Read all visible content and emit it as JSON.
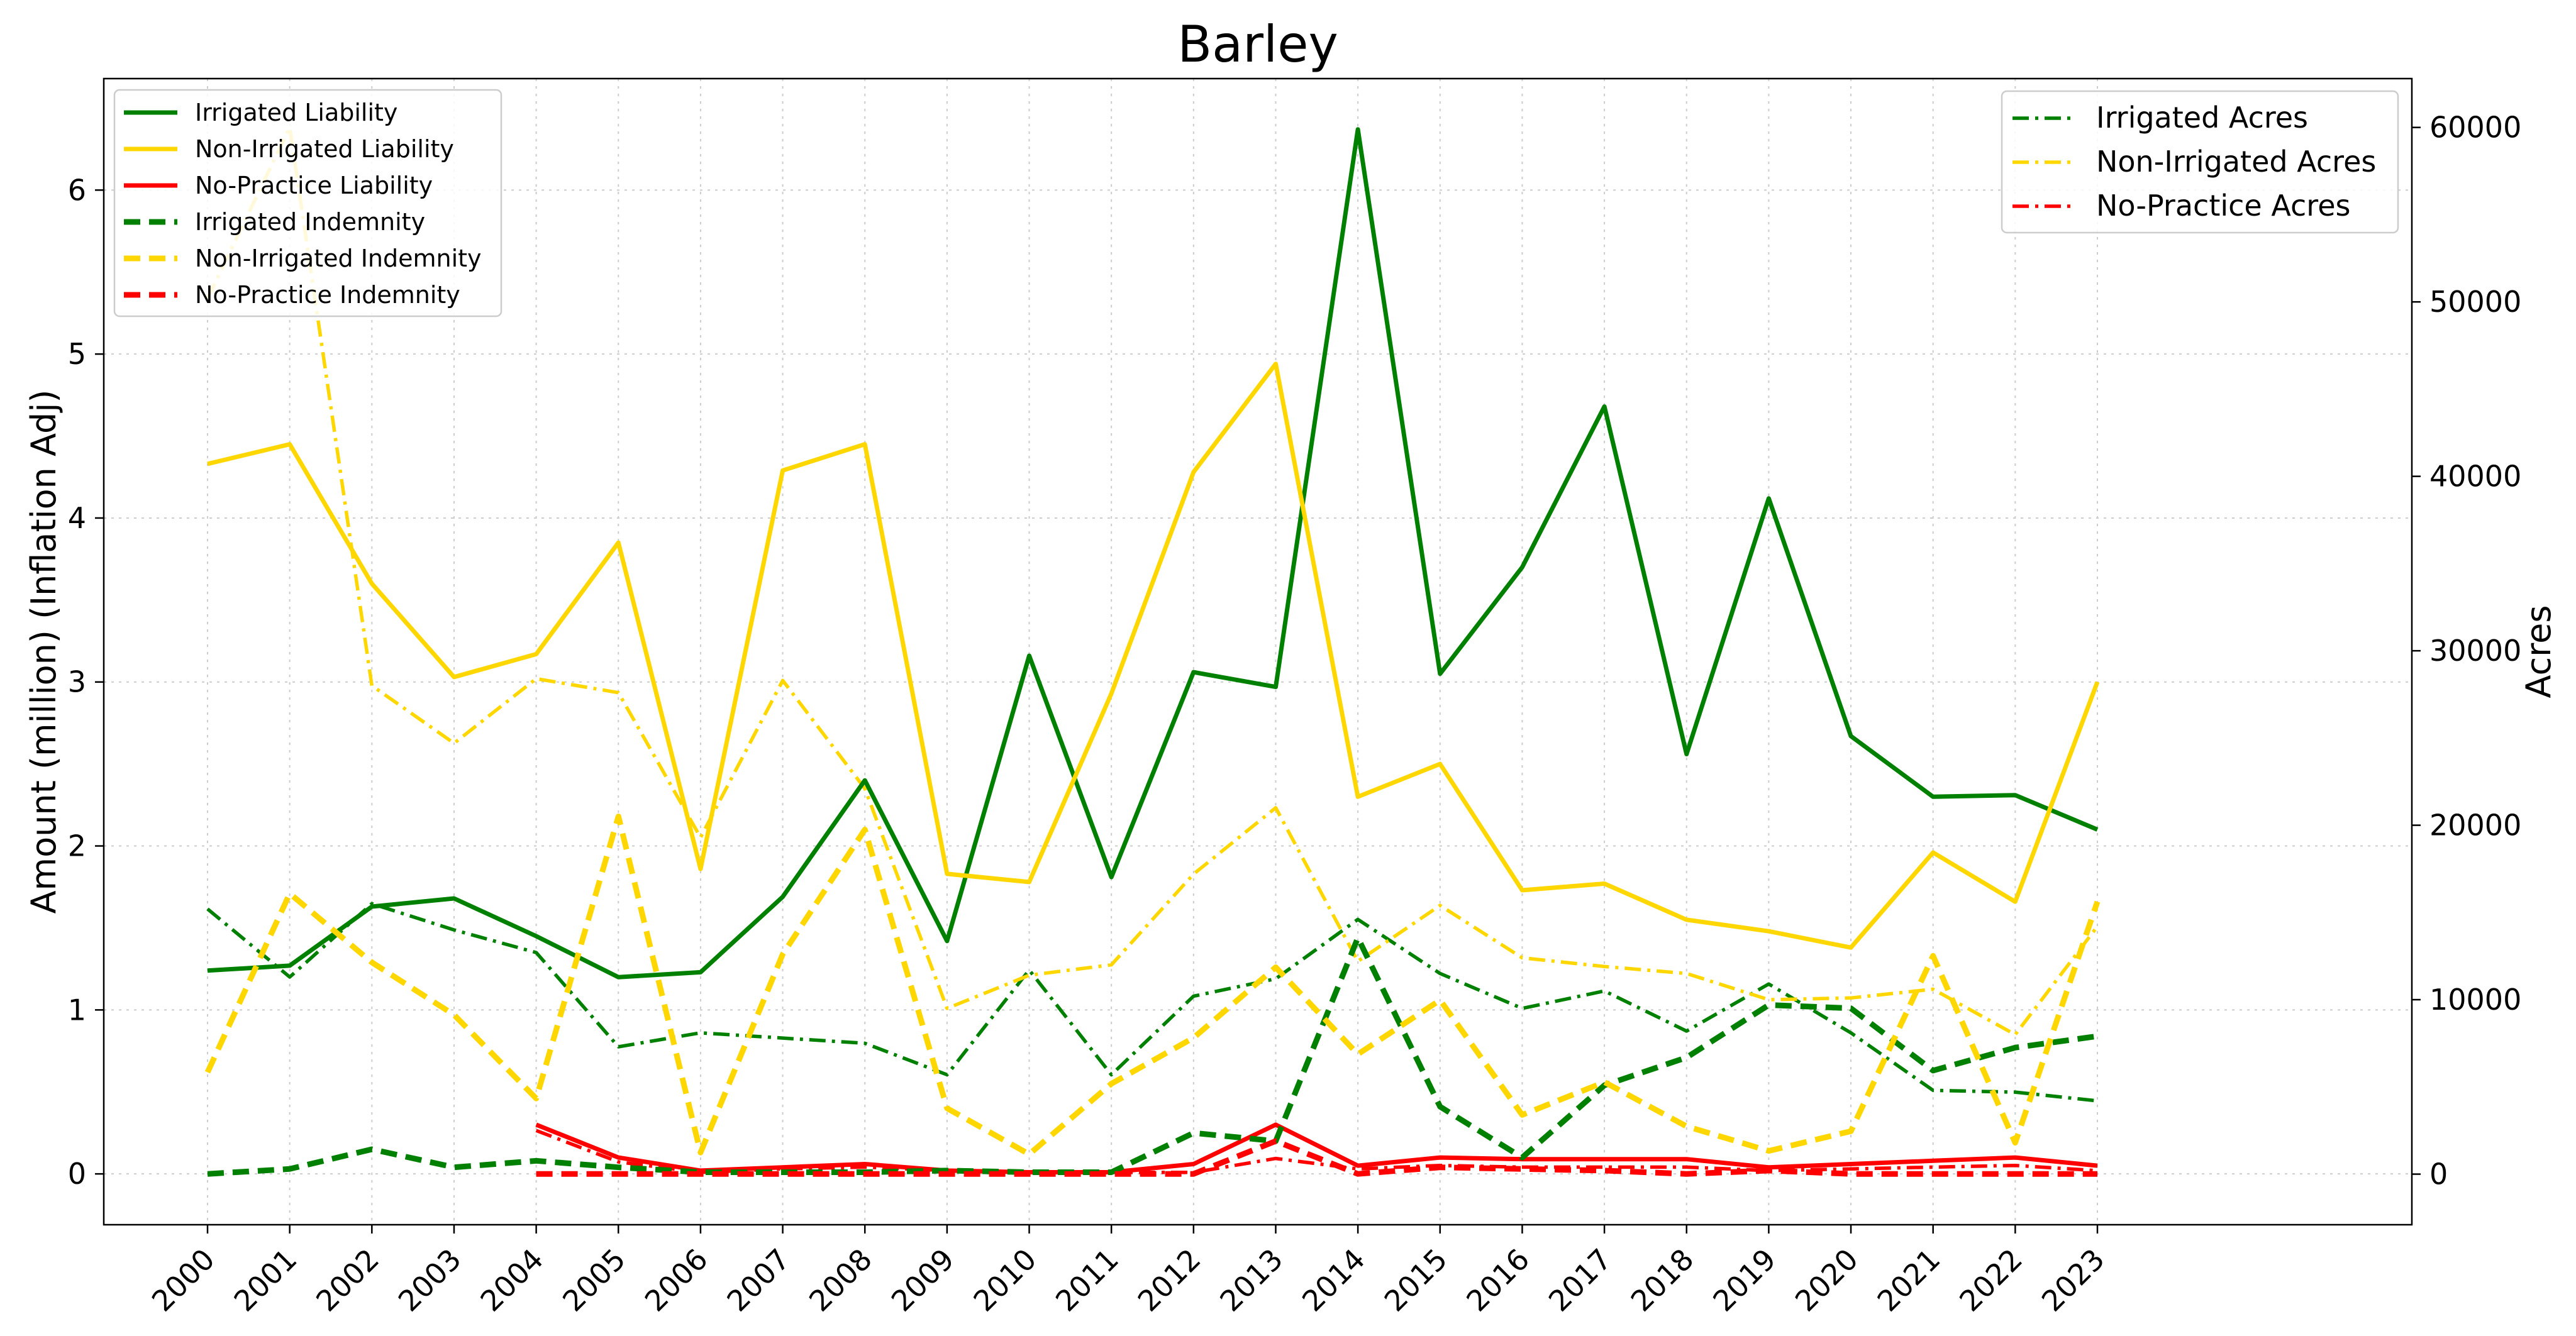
{
  "chart_data": {
    "type": "line",
    "title": "Barley",
    "xlabel": "",
    "ylabel": "Amount (million) (Inflation Adj)",
    "y2label": "Acres",
    "x": [
      "2000",
      "2001",
      "2002",
      "2003",
      "2004",
      "2005",
      "2006",
      "2007",
      "2008",
      "2009",
      "2010",
      "2011",
      "2012",
      "2013",
      "2014",
      "2015",
      "2016",
      "2017",
      "2018",
      "2019",
      "2020",
      "2021",
      "2022",
      "2023"
    ],
    "ylim": [
      -0.31,
      6.68
    ],
    "y2lim": [
      -2900,
      62800
    ],
    "yticks": [
      0,
      1,
      2,
      3,
      4,
      5,
      6
    ],
    "y2ticks": [
      0,
      10000,
      20000,
      30000,
      40000,
      50000,
      60000
    ],
    "y2ticklabels": [
      "0",
      "10000",
      "20000",
      "30000",
      "40000",
      "50000",
      "60000"
    ],
    "grid": true,
    "legend_left_position": "upper-left",
    "legend_right_position": "upper-right",
    "series_left": [
      {
        "name": "Irrigated Liability",
        "color": "#008000",
        "style": "solid",
        "values": [
          1.24,
          1.27,
          1.63,
          1.68,
          1.45,
          1.2,
          1.23,
          1.69,
          2.4,
          1.42,
          3.16,
          1.81,
          3.06,
          2.97,
          6.37,
          3.05,
          3.7,
          4.68,
          2.56,
          4.12,
          2.67,
          2.3,
          2.31,
          2.1
        ]
      },
      {
        "name": "Non-Irrigated Liability",
        "color": "#FFD700",
        "style": "solid",
        "values": [
          4.33,
          4.45,
          3.6,
          3.03,
          3.17,
          3.85,
          1.86,
          4.29,
          4.45,
          1.83,
          1.78,
          2.93,
          4.28,
          4.94,
          2.3,
          2.5,
          1.73,
          1.77,
          1.55,
          1.48,
          1.38,
          1.96,
          1.66,
          3.0
        ]
      },
      {
        "name": "No-Practice Liability",
        "color": "#FF0000",
        "style": "solid",
        "values": [
          null,
          null,
          null,
          null,
          0.3,
          0.1,
          0.02,
          0.04,
          0.06,
          0.02,
          0.01,
          0.01,
          0.06,
          0.3,
          0.05,
          0.1,
          0.09,
          0.09,
          0.09,
          0.04,
          0.06,
          0.08,
          0.1,
          0.05
        ]
      },
      {
        "name": "Irrigated Indemnity",
        "color": "#008000",
        "style": "dashed",
        "values": [
          0.0,
          0.03,
          0.15,
          0.04,
          0.08,
          0.04,
          0.01,
          0.01,
          0.01,
          0.02,
          0.01,
          0.01,
          0.25,
          0.2,
          1.44,
          0.41,
          0.1,
          0.54,
          0.71,
          1.03,
          1.01,
          0.63,
          0.77,
          0.84
        ]
      },
      {
        "name": "Non-Irrigated Indemnity",
        "color": "#FFD700",
        "style": "dashed",
        "values": [
          0.62,
          1.71,
          1.29,
          0.97,
          0.46,
          2.18,
          0.13,
          1.34,
          2.1,
          0.4,
          0.12,
          0.55,
          0.83,
          1.26,
          0.73,
          1.06,
          0.36,
          0.56,
          0.29,
          0.14,
          0.26,
          1.33,
          0.19,
          1.66
        ]
      },
      {
        "name": "No-Practice Indemnity",
        "color": "#FF0000",
        "style": "dashed",
        "values": [
          null,
          null,
          null,
          null,
          0.0,
          0.0,
          0.0,
          0.0,
          0.0,
          0.0,
          0.0,
          0.0,
          0.0,
          0.2,
          0.0,
          0.04,
          0.03,
          0.02,
          0.0,
          0.02,
          0.0,
          0.0,
          0.0,
          0.0
        ]
      }
    ],
    "series_right": [
      {
        "name": "Irrigated Acres",
        "color": "#008000",
        "style": "dashdot",
        "values": [
          15200,
          11300,
          15500,
          14000,
          12700,
          7300,
          8100,
          7800,
          7500,
          5700,
          11700,
          5700,
          10200,
          11200,
          14600,
          11500,
          9500,
          10500,
          8200,
          10900,
          8100,
          4800,
          4700,
          4200
        ]
      },
      {
        "name": "Non-Irrigated Acres",
        "color": "#FFD700",
        "style": "dashdot",
        "values": [
          50200,
          60000,
          28000,
          24700,
          28400,
          27600,
          19300,
          28300,
          22100,
          9500,
          11400,
          12000,
          17200,
          21000,
          12200,
          15400,
          12400,
          11900,
          11500,
          10000,
          10100,
          10600,
          8000,
          14200
        ]
      },
      {
        "name": "No-Practice Acres",
        "color": "#FF0000",
        "style": "dashdot",
        "values": [
          null,
          null,
          null,
          null,
          2500,
          700,
          100,
          300,
          400,
          200,
          100,
          100,
          100,
          900,
          300,
          500,
          400,
          400,
          400,
          200,
          300,
          400,
          500,
          200
        ]
      }
    ]
  }
}
